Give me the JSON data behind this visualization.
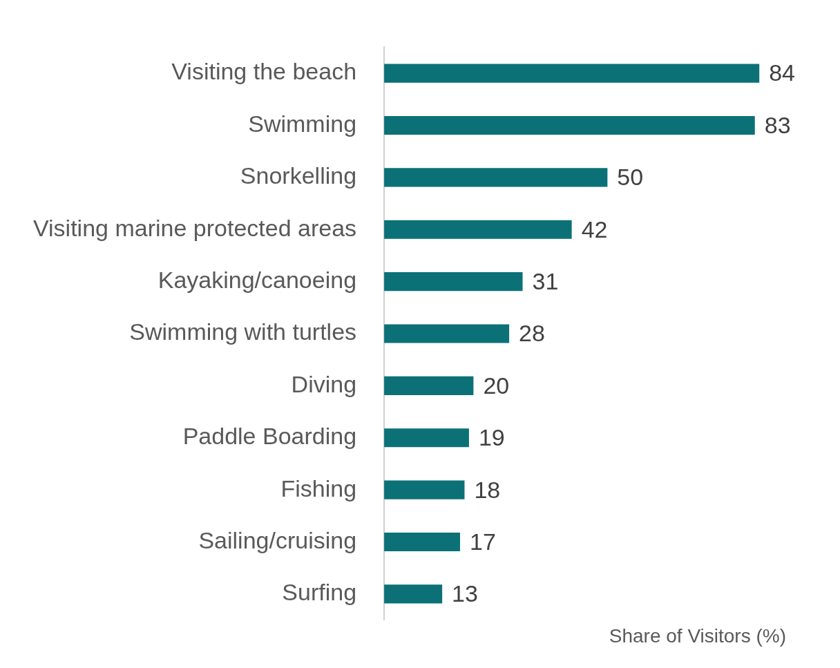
{
  "chart_data": {
    "type": "bar",
    "orientation": "horizontal",
    "xlabel": "Share of Visitors (%)",
    "categories": [
      "Visiting the beach",
      "Swimming",
      "Snorkelling",
      "Visiting marine protected areas",
      "Kayaking/canoeing",
      "Swimming with turtles",
      "Diving",
      "Paddle Boarding",
      "Fishing",
      "Sailing/cruising",
      "Surfing"
    ],
    "values": [
      84,
      83,
      50,
      42,
      31,
      28,
      20,
      19,
      18,
      17,
      13
    ],
    "color": "#0b7177",
    "data_labels": true,
    "tick_labels": "y"
  }
}
